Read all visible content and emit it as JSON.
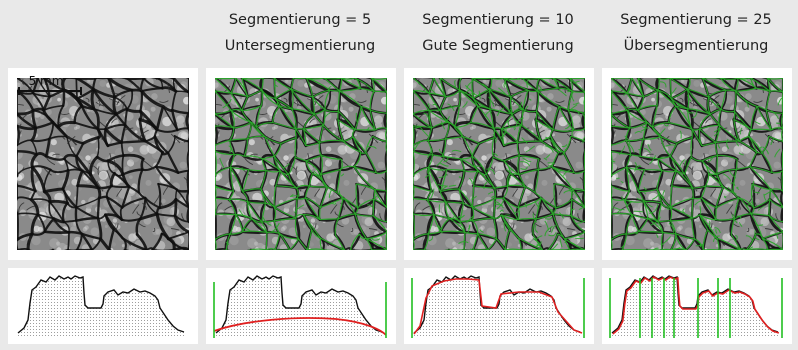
{
  "columns": [
    {
      "id": "original",
      "line1": "",
      "line2": ""
    },
    {
      "id": "seg5",
      "line1": "Segmentierung = 5",
      "line2": "Untersegmentierung"
    },
    {
      "id": "seg10",
      "line1": "Segmentierung = 10",
      "line2": "Gute Segmentierung"
    },
    {
      "id": "seg25",
      "line1": "Segmentierung = 25",
      "line2": "Übersegmentierung"
    }
  ],
  "scale_bar": {
    "label": "5 mm"
  },
  "colors": {
    "background": "#e9e9e9",
    "tile": "#ffffff",
    "crack": "#101010",
    "segmentation_lines": "#2aa52a",
    "profile_line": "#111111",
    "fit_line": "#e02020",
    "boundary_markers": "#22c022"
  },
  "profiles": {
    "seg5_markers": 2,
    "seg10_markers": 2,
    "seg25_markers": 9
  }
}
